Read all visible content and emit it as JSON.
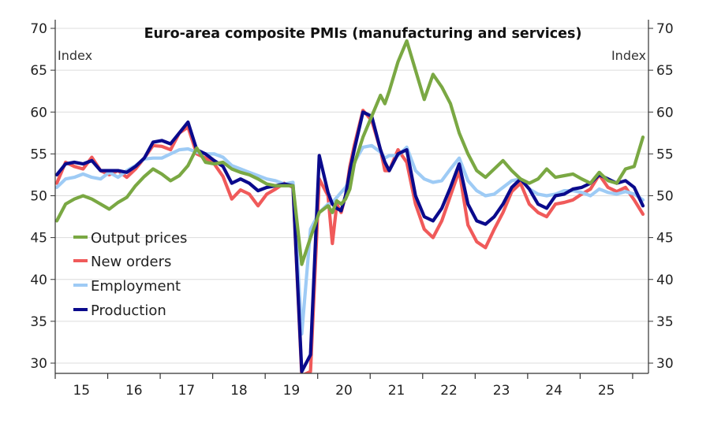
{
  "chart_data": {
    "type": "line",
    "title": "Euro-area composite PMIs (manufacturing and services)",
    "ylabel_left": "Index",
    "ylabel_right": "Index",
    "xlabel": "",
    "ylim": [
      30,
      70
    ],
    "yticks": [
      30,
      35,
      40,
      45,
      50,
      55,
      60,
      65,
      70
    ],
    "xticks": [
      "15",
      "16",
      "17",
      "18",
      "19",
      "20",
      "21",
      "22",
      "23",
      "24",
      "25"
    ],
    "x_unit": "months since Jan 2015",
    "grid": true,
    "legend_position": "bottom-left",
    "x": [
      0,
      2,
      4,
      6,
      8,
      10,
      12,
      14,
      16,
      18,
      20,
      22,
      24,
      26,
      28,
      30,
      32,
      34,
      36,
      38,
      40,
      42,
      44,
      46,
      48,
      50,
      52,
      54,
      56,
      58,
      60,
      62,
      63,
      64,
      65,
      66,
      67,
      68,
      70,
      72,
      74,
      75,
      76,
      78,
      80,
      82,
      84,
      86,
      88,
      90,
      92,
      94,
      96,
      98,
      100,
      102,
      104,
      106,
      108,
      110,
      112,
      114,
      116,
      118,
      120,
      122,
      124,
      126,
      128,
      130,
      132,
      134
    ],
    "series": [
      {
        "name": "Output prices",
        "color": "#7aa843",
        "values": [
          47.0,
          49.0,
          49.6,
          50.0,
          49.6,
          49.0,
          48.4,
          49.2,
          49.8,
          51.2,
          52.3,
          53.2,
          52.6,
          51.8,
          52.4,
          53.6,
          55.7,
          54.0,
          53.8,
          54.0,
          53.2,
          52.8,
          52.5,
          52.0,
          51.4,
          51.2,
          51.2,
          51.2,
          41.8,
          45.0,
          48.0,
          48.8,
          48.0,
          49.4,
          49.0,
          49.6,
          50.8,
          53.8,
          57.0,
          59.5,
          62.0,
          61.0,
          62.5,
          66.0,
          68.5,
          65.0,
          61.5,
          64.5,
          63.0,
          61.0,
          57.5,
          55.0,
          53.0,
          52.2,
          53.2,
          54.2,
          53.0,
          52.0,
          51.5,
          52.0,
          53.2,
          52.2,
          52.4,
          52.6,
          52.0,
          51.5,
          52.8,
          51.8,
          51.5,
          53.2,
          53.5,
          57.0
        ]
      },
      {
        "name": "New orders",
        "color": "#f05a5a",
        "values": [
          51.5,
          54.0,
          53.5,
          53.2,
          54.6,
          53.0,
          52.5,
          53.0,
          52.2,
          53.2,
          54.5,
          56.0,
          55.9,
          55.5,
          57.5,
          58.2,
          55.0,
          54.5,
          53.8,
          52.3,
          49.6,
          50.7,
          50.2,
          48.8,
          50.2,
          50.8,
          51.5,
          51.0,
          28.5,
          29.0,
          52.0,
          50.0,
          44.3,
          49.0,
          48.0,
          50.0,
          53.5,
          56.0,
          60.2,
          59.0,
          55.5,
          53.0,
          53.0,
          55.5,
          54.0,
          49.0,
          46.0,
          45.0,
          47.0,
          50.0,
          53.0,
          46.5,
          44.5,
          43.8,
          46.0,
          48.0,
          50.5,
          51.5,
          49.0,
          48.0,
          47.5,
          49.0,
          49.2,
          49.5,
          50.2,
          50.8,
          52.5,
          51.0,
          50.5,
          51.0,
          49.5,
          47.8
        ]
      },
      {
        "name": "Employment",
        "color": "#9ecbf5",
        "values": [
          51.0,
          52.0,
          52.2,
          52.6,
          52.2,
          52.0,
          52.8,
          52.2,
          53.0,
          53.6,
          54.4,
          54.5,
          54.5,
          55.0,
          55.5,
          55.6,
          55.2,
          55.0,
          55.0,
          54.6,
          53.6,
          53.2,
          52.8,
          52.4,
          52.0,
          51.8,
          51.4,
          51.6,
          33.5,
          46.0,
          48.0,
          49.0,
          49.2,
          49.8,
          50.4,
          51.0,
          52.0,
          54.0,
          55.8,
          56.0,
          55.2,
          54.5,
          54.8,
          54.8,
          55.8,
          53.0,
          52.0,
          51.6,
          51.8,
          53.2,
          54.5,
          51.8,
          50.6,
          50.0,
          50.2,
          51.0,
          51.8,
          52.0,
          50.8,
          50.2,
          50.0,
          50.2,
          50.6,
          50.6,
          50.4,
          50.0,
          50.8,
          50.4,
          50.2,
          50.5,
          50.2,
          49.5
        ]
      },
      {
        "name": "Production",
        "color": "#0a0a8c",
        "values": [
          52.5,
          53.8,
          54.0,
          53.8,
          54.2,
          53.0,
          53.0,
          53.0,
          52.8,
          53.5,
          54.5,
          56.4,
          56.6,
          56.2,
          57.5,
          58.8,
          55.5,
          55.0,
          54.2,
          53.5,
          51.5,
          52.0,
          51.5,
          50.6,
          51.0,
          51.2,
          51.4,
          51.2,
          29.0,
          31.0,
          54.8,
          50.4,
          49.0,
          48.5,
          48.2,
          50.0,
          53.0,
          55.5,
          60.0,
          59.5,
          55.5,
          54.0,
          53.0,
          55.0,
          55.5,
          50.0,
          47.5,
          47.0,
          48.5,
          51.0,
          53.8,
          49.0,
          47.0,
          46.6,
          47.5,
          49.0,
          51.0,
          52.0,
          50.8,
          49.0,
          48.5,
          50.0,
          50.2,
          50.8,
          51.0,
          51.5,
          52.5,
          52.0,
          51.5,
          51.8,
          51.0,
          48.8
        ]
      }
    ]
  },
  "legend": {
    "items": [
      {
        "label": "Output prices",
        "color": "#7aa843"
      },
      {
        "label": "New orders",
        "color": "#f05a5a"
      },
      {
        "label": "Employment",
        "color": "#9ecbf5"
      },
      {
        "label": "Production",
        "color": "#0a0a8c"
      }
    ]
  }
}
